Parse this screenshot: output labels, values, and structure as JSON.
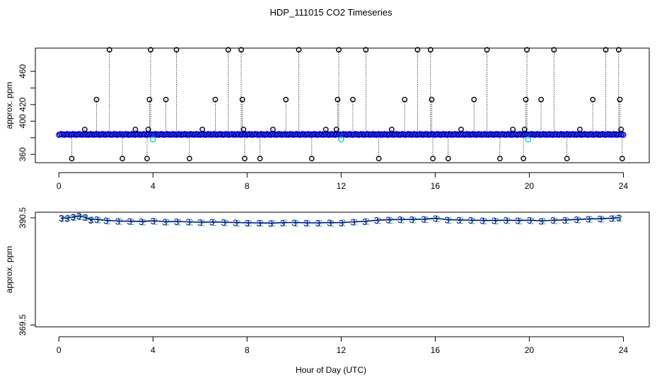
{
  "title": "HDP_111015  CO2 Timeseries",
  "xlabel": "Hour of Day (UTC)",
  "colors": {
    "axis": "#000000",
    "outlier": "#000000",
    "main_series": "#0000cc",
    "highlight": "#00c8c8",
    "series3": "#0000cc",
    "series2": "#22bb22"
  },
  "chart_data": [
    {
      "type": "scatter",
      "name": "top-panel",
      "ylabel": "approx. ppm",
      "xlim": [
        -1,
        25.1
      ],
      "ylim": [
        350,
        488
      ],
      "xticks": [
        0,
        4,
        8,
        12,
        16,
        20,
        24
      ],
      "yticks": [
        360,
        380,
        400,
        420,
        440,
        460
      ],
      "ytick_labels_shown": [
        "360",
        "400",
        "420",
        "460"
      ],
      "baseline": 384,
      "baseline_range": [
        0.0,
        24.0
      ],
      "outliers": [
        {
          "x": 0.55,
          "y": 355
        },
        {
          "x": 1.1,
          "y": 390
        },
        {
          "x": 1.6,
          "y": 426
        },
        {
          "x": 2.15,
          "y": 486
        },
        {
          "x": 2.7,
          "y": 355
        },
        {
          "x": 3.25,
          "y": 390
        },
        {
          "x": 3.75,
          "y": 355
        },
        {
          "x": 3.8,
          "y": 390
        },
        {
          "x": 3.85,
          "y": 426
        },
        {
          "x": 3.9,
          "y": 486
        },
        {
          "x": 4.55,
          "y": 426
        },
        {
          "x": 5.0,
          "y": 486
        },
        {
          "x": 5.55,
          "y": 355
        },
        {
          "x": 6.1,
          "y": 390
        },
        {
          "x": 6.65,
          "y": 426
        },
        {
          "x": 7.2,
          "y": 486
        },
        {
          "x": 7.75,
          "y": 486
        },
        {
          "x": 7.8,
          "y": 426
        },
        {
          "x": 7.85,
          "y": 390
        },
        {
          "x": 7.9,
          "y": 355
        },
        {
          "x": 8.55,
          "y": 355
        },
        {
          "x": 9.1,
          "y": 390
        },
        {
          "x": 9.65,
          "y": 426
        },
        {
          "x": 10.2,
          "y": 486
        },
        {
          "x": 10.75,
          "y": 355
        },
        {
          "x": 11.35,
          "y": 390
        },
        {
          "x": 11.8,
          "y": 390
        },
        {
          "x": 11.85,
          "y": 426
        },
        {
          "x": 11.9,
          "y": 486
        },
        {
          "x": 12.5,
          "y": 426
        },
        {
          "x": 13.05,
          "y": 486
        },
        {
          "x": 13.6,
          "y": 355
        },
        {
          "x": 14.15,
          "y": 390
        },
        {
          "x": 14.7,
          "y": 426
        },
        {
          "x": 15.25,
          "y": 486
        },
        {
          "x": 15.8,
          "y": 486
        },
        {
          "x": 15.85,
          "y": 426
        },
        {
          "x": 15.9,
          "y": 355
        },
        {
          "x": 16.55,
          "y": 355
        },
        {
          "x": 17.1,
          "y": 390
        },
        {
          "x": 17.65,
          "y": 426
        },
        {
          "x": 18.2,
          "y": 486
        },
        {
          "x": 18.75,
          "y": 355
        },
        {
          "x": 19.3,
          "y": 390
        },
        {
          "x": 19.75,
          "y": 355
        },
        {
          "x": 19.8,
          "y": 390
        },
        {
          "x": 19.85,
          "y": 426
        },
        {
          "x": 19.9,
          "y": 486
        },
        {
          "x": 20.5,
          "y": 426
        },
        {
          "x": 21.05,
          "y": 486
        },
        {
          "x": 21.6,
          "y": 355
        },
        {
          "x": 22.15,
          "y": 390
        },
        {
          "x": 22.7,
          "y": 426
        },
        {
          "x": 23.25,
          "y": 486
        },
        {
          "x": 23.8,
          "y": 486
        },
        {
          "x": 23.85,
          "y": 426
        },
        {
          "x": 23.9,
          "y": 390
        },
        {
          "x": 23.95,
          "y": 355
        }
      ],
      "highlight_points": [
        {
          "x": 4.0,
          "y": 378
        },
        {
          "x": 12.0,
          "y": 378
        },
        {
          "x": 19.95,
          "y": 378
        }
      ]
    },
    {
      "type": "line",
      "name": "bottom-panel",
      "ylabel": "approx. ppm",
      "xlim": [
        -1,
        25.1
      ],
      "ylim": [
        369.15,
        391.6
      ],
      "xticks": [
        0,
        4,
        8,
        12,
        16,
        20,
        24
      ],
      "yticks": [
        369.5,
        390.5
      ],
      "series": [
        {
          "name": "3",
          "x": [
            0.1,
            0.35,
            0.6,
            0.85,
            1.1,
            1.35,
            1.6,
            2.0,
            2.5,
            3.0,
            3.5,
            4.0,
            4.5,
            5.0,
            5.5,
            6.0,
            6.5,
            7.0,
            7.5,
            8.0,
            8.5,
            9.0,
            9.5,
            10.0,
            10.5,
            11.0,
            11.5,
            12.0,
            12.5,
            13.0,
            13.5,
            14.0,
            14.5,
            15.0,
            15.5,
            16.0,
            16.5,
            17.0,
            17.5,
            18.0,
            18.5,
            19.0,
            19.5,
            20.0,
            20.5,
            21.0,
            21.5,
            22.0,
            22.5,
            23.0,
            23.5,
            23.8
          ],
          "y": [
            390.5,
            390.4,
            390.7,
            390.9,
            390.6,
            390.1,
            390.2,
            390.0,
            389.9,
            389.85,
            389.8,
            389.95,
            389.75,
            389.8,
            389.7,
            389.65,
            389.7,
            389.65,
            389.6,
            389.55,
            389.5,
            389.45,
            389.55,
            389.6,
            389.55,
            389.5,
            389.6,
            389.55,
            389.7,
            389.8,
            390.05,
            390.15,
            390.2,
            390.2,
            390.25,
            390.45,
            390.15,
            390.1,
            390.05,
            390.0,
            390.0,
            390.05,
            390.0,
            390.05,
            389.9,
            390.05,
            390.1,
            390.2,
            390.3,
            390.35,
            390.45,
            390.55
          ]
        },
        {
          "name": "2",
          "x": [
            0.15,
            0.4,
            0.65,
            0.9,
            1.15,
            1.4,
            1.7,
            2.1,
            2.6,
            3.1,
            3.6,
            4.1,
            4.6,
            5.1,
            5.6,
            6.1,
            6.6,
            7.1,
            7.6,
            8.1,
            8.6,
            9.1,
            9.6,
            10.1,
            10.6,
            11.1,
            11.6,
            12.1,
            12.6,
            13.1,
            13.6,
            14.1,
            14.6,
            15.1,
            15.6,
            16.1,
            16.6,
            17.1,
            17.6,
            18.1,
            18.6,
            19.1,
            19.6,
            20.1,
            20.6,
            21.1,
            21.6,
            22.1,
            22.6,
            23.1,
            23.6,
            23.85
          ],
          "y": [
            390.45,
            390.55,
            390.6,
            390.8,
            390.65,
            390.2,
            390.15,
            389.95,
            389.85,
            389.8,
            389.75,
            389.9,
            389.7,
            389.75,
            389.7,
            389.6,
            389.65,
            389.6,
            389.55,
            389.5,
            389.55,
            389.5,
            389.6,
            389.55,
            389.5,
            389.55,
            389.5,
            389.6,
            389.75,
            389.85,
            390.0,
            390.1,
            390.15,
            390.15,
            390.2,
            390.35,
            390.1,
            390.05,
            390.0,
            389.95,
            389.95,
            390.0,
            389.95,
            390.0,
            389.95,
            390.0,
            390.05,
            390.15,
            390.25,
            390.3,
            390.4,
            390.5
          ]
        }
      ]
    }
  ]
}
